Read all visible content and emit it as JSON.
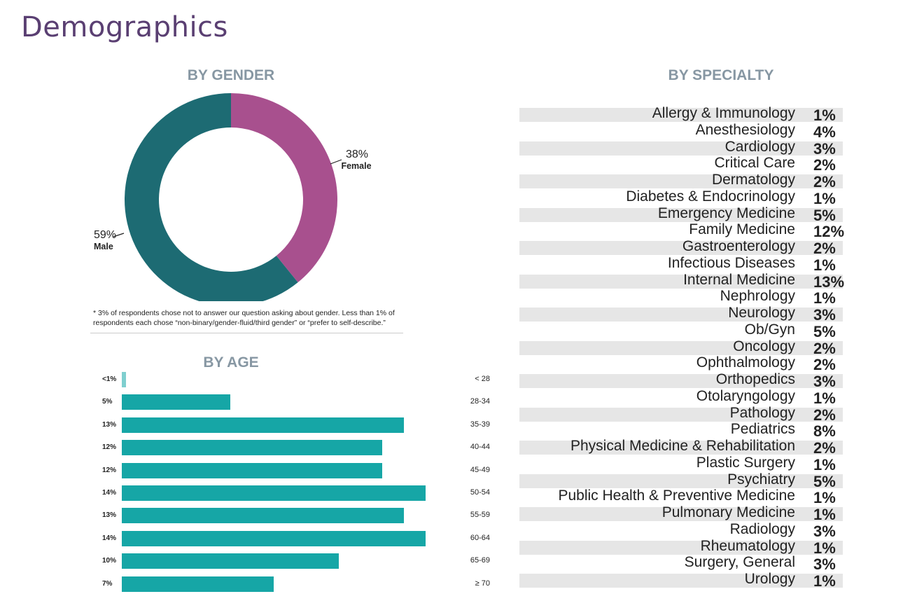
{
  "title": "Demographics",
  "chart_data": [
    {
      "type": "pie",
      "variant": "donut",
      "title": "BY GENDER",
      "slices": [
        {
          "label": "Female",
          "value": 38,
          "value_label": "38%",
          "color": "#a8508e"
        },
        {
          "label": "Male",
          "value": 59,
          "value_label": "59%",
          "color": "#1d6b73"
        }
      ],
      "footnote": "* 3% of respondents chose not to answer our question asking about gender. Less than 1% of respondents each chose “non-binary/gender-fluid/third gender” or “prefer to self-describe.”"
    },
    {
      "type": "bar",
      "orientation": "horizontal",
      "title": "BY AGE",
      "color": "#16a6a6",
      "categories": [
        "< 28",
        "28-34",
        "35-39",
        "40-44",
        "45-49",
        "50-54",
        "55-59",
        "60-64",
        "65-69",
        "≥ 70"
      ],
      "values": [
        0.2,
        5,
        13,
        12,
        12,
        14,
        13,
        14,
        10,
        7
      ],
      "value_labels": [
        "<1%",
        "5%",
        "13%",
        "12%",
        "12%",
        "14%",
        "13%",
        "14%",
        "10%",
        "7%"
      ]
    },
    {
      "type": "table",
      "title": "BY SPECIALTY",
      "rows": [
        {
          "label": "Allergy & Immunology",
          "value": "1%"
        },
        {
          "label": "Anesthesiology",
          "value": "4%"
        },
        {
          "label": "Cardiology",
          "value": "3%"
        },
        {
          "label": "Critical Care",
          "value": "2%"
        },
        {
          "label": "Dermatology",
          "value": "2%"
        },
        {
          "label": "Diabetes & Endocrinology",
          "value": "1%"
        },
        {
          "label": "Emergency Medicine",
          "value": "5%"
        },
        {
          "label": "Family Medicine",
          "value": "12%"
        },
        {
          "label": "Gastroenterology",
          "value": "2%"
        },
        {
          "label": "Infectious Diseases",
          "value": "1%"
        },
        {
          "label": "Internal Medicine",
          "value": "13%"
        },
        {
          "label": "Nephrology",
          "value": "1%"
        },
        {
          "label": "Neurology",
          "value": "3%"
        },
        {
          "label": "Ob/Gyn",
          "value": "5%"
        },
        {
          "label": "Oncology",
          "value": "2%"
        },
        {
          "label": "Ophthalmology",
          "value": "2%"
        },
        {
          "label": "Orthopedics",
          "value": "3%"
        },
        {
          "label": "Otolaryngology",
          "value": "1%"
        },
        {
          "label": "Pathology",
          "value": "2%"
        },
        {
          "label": "Pediatrics",
          "value": "8%"
        },
        {
          "label": "Physical Medicine & Rehabilitation",
          "value": "2%"
        },
        {
          "label": "Plastic Surgery",
          "value": "1%"
        },
        {
          "label": "Psychiatry",
          "value": "5%"
        },
        {
          "label": "Public Health & Preventive Medicine",
          "value": "1%"
        },
        {
          "label": "Pulmonary Medicine",
          "value": "1%"
        },
        {
          "label": "Radiology",
          "value": "3%"
        },
        {
          "label": "Rheumatology",
          "value": "1%"
        },
        {
          "label": "Surgery, General",
          "value": "3%"
        },
        {
          "label": "Urology",
          "value": "1%"
        }
      ]
    }
  ]
}
